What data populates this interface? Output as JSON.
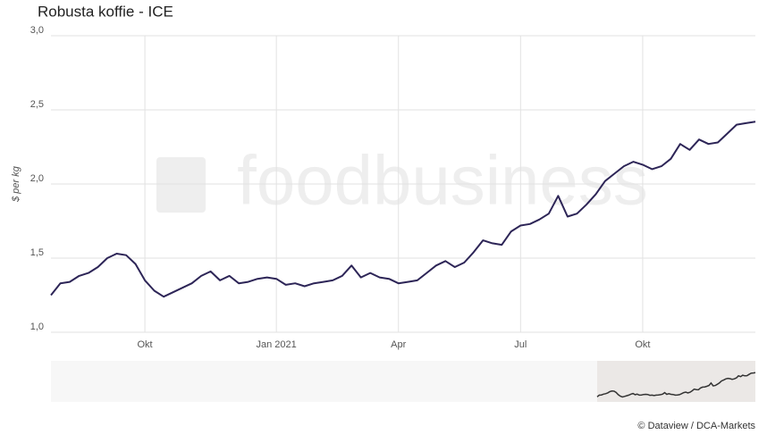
{
  "chart_data": {
    "type": "line",
    "title": "Robusta koffie - ICE",
    "y_label": "$ per kg",
    "watermark": "foodbusiness",
    "credit": "© Dataview / DCA-Markets",
    "categories": [
      null,
      null,
      null,
      null,
      null,
      null,
      null,
      null,
      null,
      null,
      "Okt",
      null,
      null,
      null,
      null,
      null,
      null,
      null,
      null,
      null,
      null,
      null,
      null,
      null,
      "Jan 2021",
      null,
      null,
      null,
      null,
      null,
      null,
      null,
      null,
      null,
      null,
      null,
      null,
      "Apr",
      null,
      null,
      null,
      null,
      null,
      null,
      null,
      null,
      null,
      null,
      null,
      null,
      "Jul",
      null,
      null,
      null,
      null,
      null,
      null,
      null,
      null,
      null,
      null,
      null,
      null,
      "Okt",
      null,
      null,
      null,
      null,
      null,
      null,
      null,
      null,
      null,
      null,
      null,
      null
    ],
    "series": [
      {
        "name": "Robusta koffie",
        "color": "#2d2557",
        "values": [
          1.25,
          1.33,
          1.34,
          1.38,
          1.4,
          1.44,
          1.5,
          1.53,
          1.52,
          1.46,
          1.35,
          1.28,
          1.24,
          1.27,
          1.3,
          1.33,
          1.38,
          1.41,
          1.35,
          1.38,
          1.33,
          1.34,
          1.36,
          1.37,
          1.36,
          1.32,
          1.33,
          1.31,
          1.33,
          1.34,
          1.35,
          1.38,
          1.45,
          1.37,
          1.4,
          1.37,
          1.36,
          1.33,
          1.34,
          1.35,
          1.4,
          1.45,
          1.48,
          1.44,
          1.47,
          1.54,
          1.62,
          1.6,
          1.59,
          1.68,
          1.72,
          1.73,
          1.76,
          1.8,
          1.92,
          1.78,
          1.8,
          1.86,
          1.93,
          2.02,
          2.07,
          2.12,
          2.15,
          2.13,
          2.1,
          2.12,
          2.17,
          2.27,
          2.23,
          2.3,
          2.27,
          2.28,
          2.34,
          2.4,
          2.41,
          2.42
        ]
      }
    ],
    "ylim": [
      1,
      3
    ],
    "yticks": [
      {
        "value": 1,
        "label": "1,0"
      },
      {
        "value": 1.5,
        "label": "1,5"
      },
      {
        "value": 2,
        "label": "2,0"
      },
      {
        "value": 2.5,
        "label": "2,5"
      },
      {
        "value": 3,
        "label": "3,0"
      }
    ],
    "grid": true
  }
}
